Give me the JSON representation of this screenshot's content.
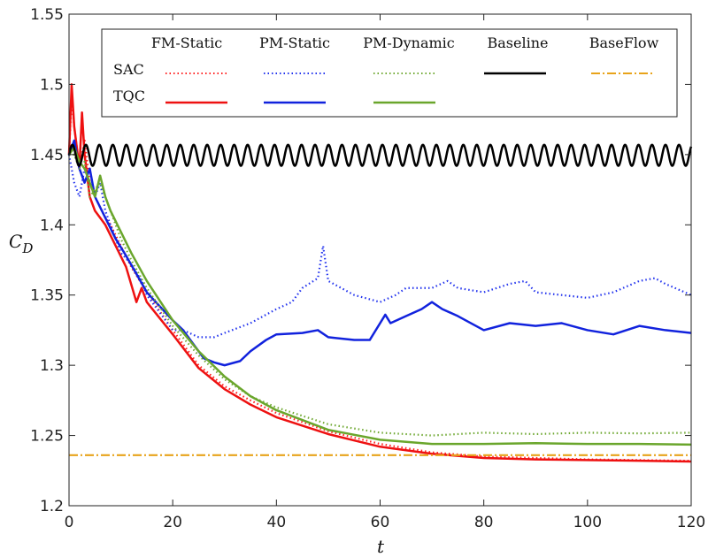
{
  "chart_data": {
    "type": "line",
    "xlabel": "t",
    "ylabel": "C_D",
    "xlim": [
      0,
      120
    ],
    "ylim": [
      1.2,
      1.55
    ],
    "xticks": [
      0,
      20,
      40,
      60,
      80,
      100,
      120
    ],
    "yticks": [
      1.2,
      1.25,
      1.3,
      1.35,
      1.4,
      1.45,
      1.5,
      1.55
    ],
    "xtick_labels": [
      "0",
      "20",
      "40",
      "60",
      "80",
      "100",
      "120"
    ],
    "ytick_labels": [
      "1.2",
      "1.25",
      "1.3",
      "1.35",
      "1.4",
      "1.45",
      "1.5",
      "1.55"
    ],
    "grid": false,
    "legend": {
      "placement": "top",
      "column_headers": [
        "FM-Static",
        "PM-Static",
        "PM-Dynamic",
        "Baseline",
        "BaseFlow"
      ],
      "row_labels": [
        "SAC",
        "TQC"
      ]
    },
    "series": [
      {
        "key": "fm_static_sac",
        "color": "#ff2020",
        "style": "dotted",
        "points": [
          [
            0,
            1.45
          ],
          [
            0.5,
            1.49
          ],
          [
            1,
            1.47
          ],
          [
            2,
            1.44
          ],
          [
            3,
            1.46
          ],
          [
            4,
            1.43
          ],
          [
            5,
            1.42
          ],
          [
            7,
            1.405
          ],
          [
            8,
            1.4
          ],
          [
            10,
            1.385
          ],
          [
            12,
            1.37
          ],
          [
            15,
            1.352
          ],
          [
            20,
            1.325
          ],
          [
            25,
            1.3
          ],
          [
            30,
            1.285
          ],
          [
            35,
            1.275
          ],
          [
            40,
            1.266
          ],
          [
            50,
            1.253
          ],
          [
            60,
            1.244
          ],
          [
            70,
            1.238
          ],
          [
            80,
            1.235
          ],
          [
            90,
            1.234
          ],
          [
            100,
            1.233
          ],
          [
            110,
            1.2325
          ],
          [
            120,
            1.232
          ]
        ]
      },
      {
        "key": "fm_static_tqc",
        "color": "#ee1111",
        "style": "solid",
        "points": [
          [
            0,
            1.45
          ],
          [
            0.5,
            1.5
          ],
          [
            1,
            1.47
          ],
          [
            2,
            1.44
          ],
          [
            2.5,
            1.48
          ],
          [
            3,
            1.45
          ],
          [
            4,
            1.42
          ],
          [
            5,
            1.41
          ],
          [
            7,
            1.4
          ],
          [
            9,
            1.385
          ],
          [
            11,
            1.37
          ],
          [
            13,
            1.345
          ],
          [
            14,
            1.355
          ],
          [
            15,
            1.345
          ],
          [
            20,
            1.322
          ],
          [
            25,
            1.298
          ],
          [
            30,
            1.283
          ],
          [
            35,
            1.272
          ],
          [
            40,
            1.263
          ],
          [
            50,
            1.251
          ],
          [
            60,
            1.242
          ],
          [
            70,
            1.237
          ],
          [
            80,
            1.234
          ],
          [
            90,
            1.233
          ],
          [
            100,
            1.2325
          ],
          [
            110,
            1.232
          ],
          [
            120,
            1.2315
          ]
        ]
      },
      {
        "key": "pm_static_sac",
        "color": "#2233ee",
        "style": "dotted",
        "points": [
          [
            0,
            1.45
          ],
          [
            1,
            1.43
          ],
          [
            2,
            1.42
          ],
          [
            3,
            1.44
          ],
          [
            4,
            1.43
          ],
          [
            5,
            1.42
          ],
          [
            6,
            1.43
          ],
          [
            7,
            1.41
          ],
          [
            8,
            1.4
          ],
          [
            10,
            1.38
          ],
          [
            12,
            1.372
          ],
          [
            14,
            1.36
          ],
          [
            15,
            1.35
          ],
          [
            18,
            1.335
          ],
          [
            20,
            1.325
          ],
          [
            22,
            1.325
          ],
          [
            25,
            1.32
          ],
          [
            28,
            1.32
          ],
          [
            30,
            1.323
          ],
          [
            35,
            1.33
          ],
          [
            40,
            1.34
          ],
          [
            43,
            1.345
          ],
          [
            45,
            1.355
          ],
          [
            48,
            1.362
          ],
          [
            49,
            1.385
          ],
          [
            50,
            1.36
          ],
          [
            55,
            1.35
          ],
          [
            60,
            1.345
          ],
          [
            63,
            1.35
          ],
          [
            65,
            1.355
          ],
          [
            70,
            1.355
          ],
          [
            73,
            1.36
          ],
          [
            75,
            1.355
          ],
          [
            80,
            1.352
          ],
          [
            85,
            1.358
          ],
          [
            88,
            1.36
          ],
          [
            90,
            1.352
          ],
          [
            95,
            1.35
          ],
          [
            100,
            1.348
          ],
          [
            105,
            1.352
          ],
          [
            110,
            1.36
          ],
          [
            113,
            1.362
          ],
          [
            115,
            1.358
          ],
          [
            120,
            1.35
          ]
        ]
      },
      {
        "key": "pm_static_tqc",
        "color": "#1122dd",
        "style": "solid",
        "points": [
          [
            0,
            1.45
          ],
          [
            1,
            1.46
          ],
          [
            2,
            1.44
          ],
          [
            3,
            1.43
          ],
          [
            4,
            1.44
          ],
          [
            5,
            1.42
          ],
          [
            7,
            1.405
          ],
          [
            9,
            1.39
          ],
          [
            11,
            1.378
          ],
          [
            13,
            1.365
          ],
          [
            15,
            1.352
          ],
          [
            18,
            1.34
          ],
          [
            20,
            1.332
          ],
          [
            22,
            1.325
          ],
          [
            24,
            1.315
          ],
          [
            26,
            1.305
          ],
          [
            28,
            1.302
          ],
          [
            30,
            1.3
          ],
          [
            33,
            1.303
          ],
          [
            35,
            1.31
          ],
          [
            38,
            1.318
          ],
          [
            40,
            1.322
          ],
          [
            45,
            1.323
          ],
          [
            48,
            1.325
          ],
          [
            50,
            1.32
          ],
          [
            55,
            1.318
          ],
          [
            58,
            1.318
          ],
          [
            60,
            1.33
          ],
          [
            61,
            1.336
          ],
          [
            62,
            1.33
          ],
          [
            65,
            1.335
          ],
          [
            68,
            1.34
          ],
          [
            70,
            1.345
          ],
          [
            72,
            1.34
          ],
          [
            75,
            1.335
          ],
          [
            80,
            1.325
          ],
          [
            85,
            1.33
          ],
          [
            90,
            1.328
          ],
          [
            95,
            1.33
          ],
          [
            100,
            1.325
          ],
          [
            105,
            1.322
          ],
          [
            110,
            1.328
          ],
          [
            115,
            1.325
          ],
          [
            120,
            1.323
          ]
        ]
      },
      {
        "key": "pm_dynamic_sac",
        "color": "#6fa832",
        "style": "dotted",
        "points": [
          [
            0,
            1.45
          ],
          [
            1,
            1.45
          ],
          [
            2,
            1.44
          ],
          [
            3,
            1.445
          ],
          [
            4,
            1.42
          ],
          [
            5,
            1.425
          ],
          [
            6,
            1.43
          ],
          [
            7,
            1.42
          ],
          [
            8,
            1.41
          ],
          [
            10,
            1.39
          ],
          [
            12,
            1.375
          ],
          [
            15,
            1.355
          ],
          [
            20,
            1.328
          ],
          [
            25,
            1.307
          ],
          [
            30,
            1.29
          ],
          [
            35,
            1.278
          ],
          [
            40,
            1.27
          ],
          [
            50,
            1.258
          ],
          [
            60,
            1.252
          ],
          [
            70,
            1.25
          ],
          [
            80,
            1.252
          ],
          [
            90,
            1.251
          ],
          [
            100,
            1.252
          ],
          [
            110,
            1.2515
          ],
          [
            120,
            1.252
          ]
        ]
      },
      {
        "key": "pm_dynamic_tqc",
        "color": "#6aa62c",
        "style": "solid",
        "points": [
          [
            0,
            1.45
          ],
          [
            1,
            1.455
          ],
          [
            2,
            1.445
          ],
          [
            3,
            1.44
          ],
          [
            4,
            1.43
          ],
          [
            5,
            1.42
          ],
          [
            6,
            1.435
          ],
          [
            7,
            1.42
          ],
          [
            8,
            1.41
          ],
          [
            10,
            1.395
          ],
          [
            12,
            1.38
          ],
          [
            15,
            1.36
          ],
          [
            20,
            1.332
          ],
          [
            25,
            1.31
          ],
          [
            30,
            1.292
          ],
          [
            35,
            1.278
          ],
          [
            40,
            1.268
          ],
          [
            50,
            1.254
          ],
          [
            60,
            1.247
          ],
          [
            70,
            1.244
          ],
          [
            80,
            1.244
          ],
          [
            90,
            1.2445
          ],
          [
            100,
            1.244
          ],
          [
            110,
            1.244
          ],
          [
            120,
            1.2435
          ]
        ]
      },
      {
        "key": "baseline",
        "color": "#000000",
        "style": "solid",
        "oscillation": {
          "mean": 1.4495,
          "amplitude": 0.0075,
          "period": 2.6,
          "x_start": 0,
          "x_end": 120
        }
      },
      {
        "key": "baseflow",
        "color": "#e8a31a",
        "style": "dashdot",
        "points": [
          [
            0,
            1.236
          ],
          [
            120,
            1.236
          ]
        ]
      }
    ]
  }
}
